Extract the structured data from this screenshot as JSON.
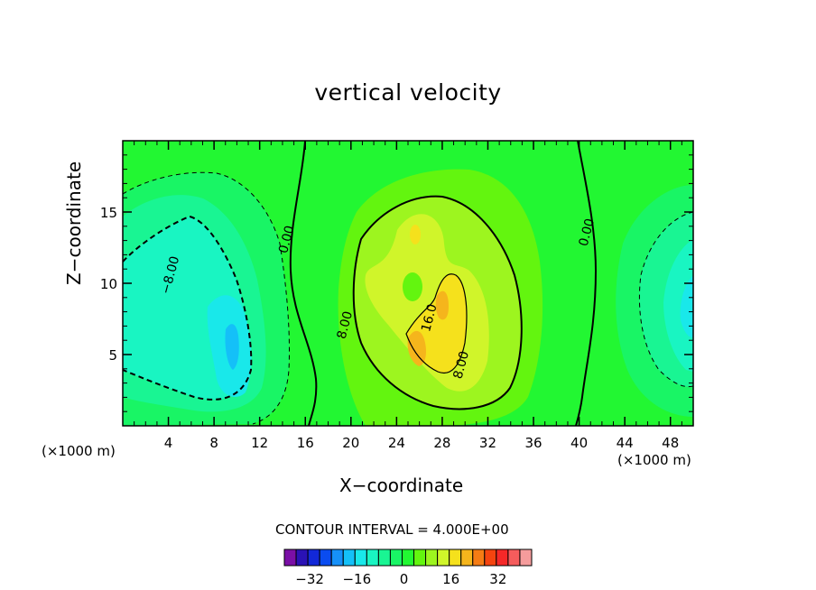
{
  "chart_data": {
    "type": "heatmap",
    "title": "vertical velocity",
    "xlabel": "X−coordinate",
    "ylabel": "Z−coordinate",
    "x_unit": "(×1000 m)",
    "xlim": [
      0,
      50
    ],
    "ylim": [
      0,
      20
    ],
    "x_ticks": [
      4,
      8,
      12,
      16,
      20,
      24,
      28,
      32,
      36,
      40,
      44,
      48
    ],
    "y_ticks": [
      5,
      10,
      15
    ],
    "contour_interval_label": "CONTOUR INTERVAL = 4.000E+00",
    "contour_interval": 4.0,
    "contour_labels": [
      {
        "text": "−8.00",
        "x": 4.5,
        "y": 10.5
      },
      {
        "text": "0.00",
        "x": 14.7,
        "y": 13.0
      },
      {
        "text": "8.00",
        "x": 19.8,
        "y": 7.0
      },
      {
        "text": "16.0",
        "x": 27.2,
        "y": 7.5
      },
      {
        "text": "8.00",
        "x": 30.0,
        "y": 4.2
      },
      {
        "text": "0.00",
        "x": 41.0,
        "y": 13.5
      }
    ],
    "features": [
      {
        "kind": "updraft",
        "x": 27,
        "z": 7,
        "peak_approx": 20
      },
      {
        "kind": "downdraft",
        "x": 10,
        "z": 6,
        "peak_approx": -16
      },
      {
        "kind": "downdraft",
        "x": 49.5,
        "z": 9,
        "peak_approx": -12
      }
    ],
    "colorbar": {
      "min": -40,
      "max": 40,
      "step": 4,
      "tick_values": [
        -32,
        -16,
        0,
        16,
        32
      ],
      "tick_labels": [
        "−32",
        "−16",
        "0",
        "16",
        "32"
      ],
      "colors": [
        "#7a0fa6",
        "#2a12b5",
        "#1228d8",
        "#0a4cf0",
        "#1690f8",
        "#14c0f8",
        "#19e8ea",
        "#19f5c2",
        "#19f593",
        "#19f565",
        "#22f732",
        "#63f50f",
        "#9df51f",
        "#d0f52a",
        "#f5e11c",
        "#f5b51c",
        "#f57c14",
        "#f5440f",
        "#f52828",
        "#f55c5c",
        "#f59c9c"
      ]
    }
  }
}
